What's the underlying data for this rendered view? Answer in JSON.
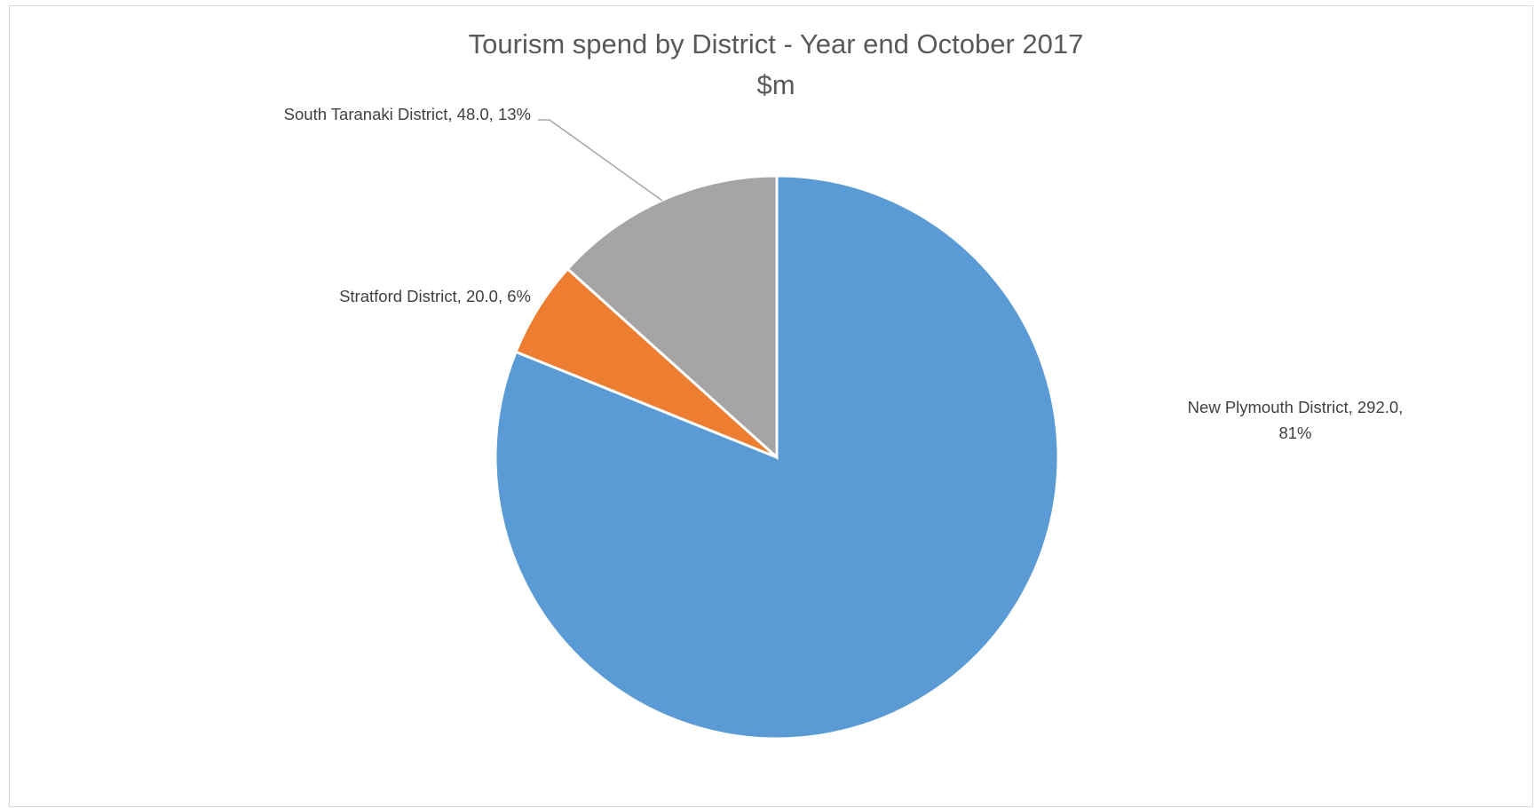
{
  "chart_data": {
    "type": "pie",
    "title": "Tourism spend by District  - Year end October 2017",
    "subtitle": "$m",
    "categories": [
      "New Plymouth District",
      "Stratford District",
      "South Taranaki District"
    ],
    "values": [
      292.0,
      20.0,
      48.0
    ],
    "percent_labels": [
      "81%",
      "6%",
      "13%"
    ],
    "value_labels": [
      "292.0",
      "20.0",
      "48.0"
    ],
    "colors": [
      "#5b9bd5",
      "#ed7d31",
      "#a5a5a5"
    ],
    "start_angle_deg": 0,
    "direction": "clockwise",
    "legend": "none",
    "data_labels": {
      "new_plymouth": {
        "line1": "New Plymouth District, 292.0,",
        "line2": "81%"
      },
      "stratford": "Stratford District, 20.0, 6%",
      "south_taranaki": "South Taranaki District, 48.0, 13%"
    }
  }
}
